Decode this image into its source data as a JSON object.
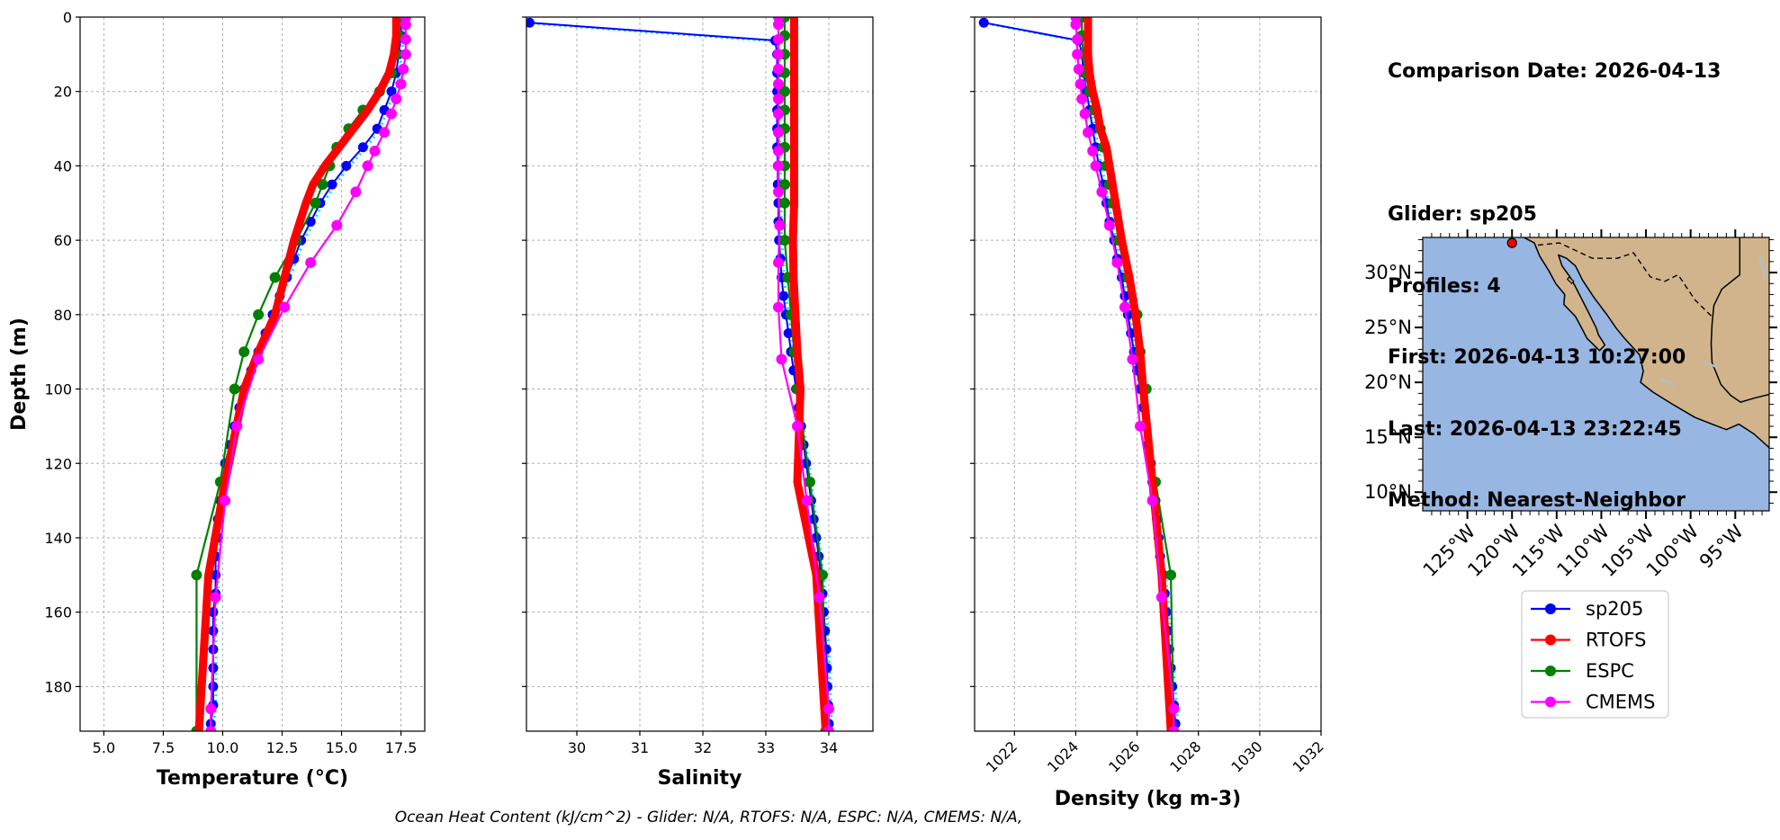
{
  "info": {
    "comparison_date": "Comparison Date: 2026-04-13",
    "glider": "Glider: sp205",
    "profiles": "Profiles: 4",
    "first": "First: 2026-04-13 10:27:00",
    "last": "Last: 2026-04-13 23:22:45",
    "method": "Method: Nearest-Neighbor"
  },
  "footer": "Ocean Heat Content (kJ/cm^2) - Glider: N/A,  RTOFS: N/A,  ESPC: N/A,  CMEMS: N/A,",
  "colors": {
    "glider": "#0000ff",
    "rtofs": "#ff0000",
    "espc": "#008000",
    "cmems": "#ff00ff",
    "glider_light": "#00e5ee",
    "land": "#d2b48c",
    "ocean": "#97b6e1"
  },
  "legend": [
    {
      "label": "sp205",
      "color": "#0000ff"
    },
    {
      "label": "RTOFS",
      "color": "#ff0000"
    },
    {
      "label": "ESPC",
      "color": "#008000"
    },
    {
      "label": "CMEMS",
      "color": "#ff00ff"
    }
  ],
  "map": {
    "lat_ticks": [
      "30°N",
      "25°N",
      "20°N",
      "15°N",
      "10°N"
    ],
    "lon_ticks": [
      "125°W",
      "120°W",
      "115°W",
      "110°W",
      "105°W",
      "100°W",
      "95°W"
    ],
    "glider_location": {
      "lon": -120.0,
      "lat": 32.7
    }
  },
  "chart_data": [
    {
      "type": "line",
      "xlabel": "Temperature (°C)",
      "ylabel": "Depth (m)",
      "xlim": [
        4,
        18.5
      ],
      "ylim": [
        192,
        0
      ],
      "xticks": [
        "5.0",
        "7.5",
        "10.0",
        "12.5",
        "15.0",
        "17.5"
      ],
      "yticks": [
        "0",
        "20",
        "40",
        "60",
        "80",
        "100",
        "120",
        "140",
        "160",
        "180"
      ],
      "grid": true,
      "series": [
        {
          "name": "RTOFS",
          "depth": [
            0,
            5,
            10,
            15,
            20,
            25,
            30,
            35,
            40,
            45,
            50,
            60,
            70,
            80,
            90,
            100,
            125,
            150,
            192
          ],
          "values": [
            17.3,
            17.3,
            17.2,
            17.0,
            16.6,
            16.1,
            15.5,
            14.9,
            14.3,
            13.8,
            13.5,
            13.0,
            12.6,
            12.2,
            11.5,
            10.9,
            10.1,
            9.4,
            9.0
          ]
        },
        {
          "name": "ESPC",
          "depth": [
            0,
            5,
            10,
            15,
            20,
            25,
            30,
            35,
            40,
            45,
            50,
            60,
            70,
            80,
            90,
            100,
            125,
            150,
            192
          ],
          "values": [
            17.5,
            17.4,
            17.3,
            17.1,
            16.6,
            15.9,
            15.3,
            14.8,
            14.5,
            14.2,
            13.9,
            13.1,
            12.2,
            11.5,
            10.9,
            10.5,
            9.9,
            8.9,
            8.9
          ]
        },
        {
          "name": "CMEMS",
          "depth": [
            0,
            2,
            6,
            10,
            14,
            18,
            22,
            26,
            31,
            36,
            40,
            47,
            56,
            66,
            78,
            92,
            110,
            130,
            156,
            186,
            192
          ],
          "values": [
            17.7,
            17.7,
            17.7,
            17.7,
            17.6,
            17.5,
            17.3,
            17.1,
            16.8,
            16.4,
            16.1,
            15.6,
            14.8,
            13.7,
            12.6,
            11.5,
            10.6,
            10.1,
            9.7,
            9.5,
            9.5
          ]
        },
        {
          "name": "sp205",
          "depth": [
            0,
            5,
            10,
            15,
            20,
            25,
            30,
            35,
            40,
            45,
            50,
            55,
            60,
            65,
            70,
            75,
            80,
            85,
            90,
            95,
            100,
            105,
            110,
            115,
            120,
            125,
            130,
            135,
            140,
            145,
            150,
            155,
            160,
            165,
            170,
            175,
            180,
            185,
            190
          ],
          "values": [
            17.5,
            17.5,
            17.4,
            17.3,
            17.1,
            16.8,
            16.5,
            15.9,
            15.2,
            14.6,
            14.1,
            13.7,
            13.3,
            13.0,
            12.7,
            12.4,
            12.1,
            11.8,
            11.5,
            11.2,
            10.9,
            10.7,
            10.5,
            10.3,
            10.1,
            10.0,
            9.9,
            9.8,
            9.8,
            9.7,
            9.7,
            9.7,
            9.6,
            9.6,
            9.6,
            9.6,
            9.6,
            9.6,
            9.5
          ]
        }
      ]
    },
    {
      "type": "line",
      "xlabel": "Salinity",
      "xlim": [
        29.2,
        34.7
      ],
      "ylim": [
        192,
        0
      ],
      "xticks": [
        "30",
        "31",
        "32",
        "33",
        "34"
      ],
      "grid": true,
      "series": [
        {
          "name": "RTOFS",
          "depth": [
            0,
            5,
            10,
            15,
            20,
            25,
            30,
            35,
            40,
            45,
            50,
            60,
            70,
            80,
            90,
            100,
            125,
            150,
            192
          ],
          "values": [
            33.45,
            33.45,
            33.45,
            33.45,
            33.45,
            33.45,
            33.45,
            33.45,
            33.45,
            33.45,
            33.45,
            33.43,
            33.44,
            33.47,
            33.5,
            33.55,
            33.5,
            33.8,
            33.95
          ]
        },
        {
          "name": "ESPC",
          "depth": [
            0,
            5,
            10,
            15,
            20,
            25,
            30,
            35,
            40,
            45,
            50,
            60,
            70,
            80,
            90,
            100,
            125,
            150,
            192
          ],
          "values": [
            33.3,
            33.3,
            33.3,
            33.3,
            33.3,
            33.3,
            33.3,
            33.3,
            33.3,
            33.3,
            33.3,
            33.3,
            33.35,
            33.4,
            33.45,
            33.5,
            33.7,
            33.9,
            33.95
          ]
        },
        {
          "name": "CMEMS",
          "depth": [
            0,
            2,
            6,
            10,
            14,
            18,
            22,
            26,
            31,
            36,
            40,
            47,
            56,
            66,
            78,
            92,
            110,
            130,
            156,
            186,
            192
          ],
          "values": [
            33.2,
            33.2,
            33.2,
            33.2,
            33.2,
            33.2,
            33.2,
            33.2,
            33.2,
            33.2,
            33.2,
            33.2,
            33.22,
            33.2,
            33.2,
            33.25,
            33.5,
            33.65,
            33.85,
            34.0,
            34.0
          ]
        },
        {
          "name": "sp205",
          "depth": [
            1.5,
            6.3,
            10,
            15,
            20,
            25,
            30,
            35,
            40,
            45,
            50,
            55,
            60,
            65,
            70,
            75,
            80,
            85,
            90,
            95,
            100,
            105,
            110,
            115,
            120,
            125,
            130,
            135,
            140,
            145,
            150,
            155,
            160,
            165,
            170,
            175,
            180,
            185,
            190
          ],
          "values": [
            29.25,
            33.15,
            33.18,
            33.18,
            33.18,
            33.18,
            33.18,
            33.18,
            33.19,
            33.19,
            33.2,
            33.2,
            33.21,
            33.23,
            33.25,
            33.28,
            33.32,
            33.36,
            33.4,
            33.44,
            33.48,
            33.52,
            33.56,
            33.6,
            33.64,
            33.68,
            33.72,
            33.76,
            33.8,
            33.84,
            33.87,
            33.9,
            33.92,
            33.94,
            33.96,
            33.97,
            33.98,
            33.99,
            34.0
          ]
        }
      ]
    },
    {
      "type": "line",
      "xlabel": "Density (kg m-3)",
      "xlim": [
        1020.7,
        1032
      ],
      "ylim": [
        192,
        0
      ],
      "xticks": [
        "1022",
        "1024",
        "1026",
        "1028",
        "1030",
        "1032"
      ],
      "grid": true,
      "series": [
        {
          "name": "RTOFS",
          "depth": [
            0,
            5,
            10,
            15,
            20,
            25,
            30,
            35,
            40,
            45,
            50,
            60,
            70,
            80,
            90,
            100,
            125,
            150,
            192
          ],
          "values": [
            1024.4,
            1024.4,
            1024.4,
            1024.45,
            1024.55,
            1024.7,
            1024.8,
            1025.0,
            1025.1,
            1025.2,
            1025.3,
            1025.5,
            1025.75,
            1025.95,
            1026.1,
            1026.2,
            1026.5,
            1026.8,
            1027.1
          ]
        },
        {
          "name": "ESPC",
          "depth": [
            0,
            5,
            10,
            15,
            20,
            25,
            30,
            35,
            40,
            45,
            50,
            60,
            70,
            80,
            90,
            100,
            125,
            150,
            192
          ],
          "values": [
            1024.2,
            1024.2,
            1024.25,
            1024.3,
            1024.45,
            1024.6,
            1024.8,
            1024.9,
            1025.0,
            1025.1,
            1025.2,
            1025.4,
            1025.7,
            1026.0,
            1026.1,
            1026.3,
            1026.6,
            1027.1,
            1027.2
          ]
        },
        {
          "name": "CMEMS",
          "depth": [
            0,
            2,
            6,
            10,
            14,
            18,
            22,
            26,
            31,
            36,
            40,
            47,
            56,
            66,
            78,
            92,
            110,
            130,
            156,
            186,
            192
          ],
          "values": [
            1024.0,
            1024.0,
            1024.05,
            1024.05,
            1024.1,
            1024.15,
            1024.2,
            1024.3,
            1024.4,
            1024.55,
            1024.65,
            1024.85,
            1025.1,
            1025.35,
            1025.6,
            1025.85,
            1026.1,
            1026.5,
            1026.8,
            1027.2,
            1027.2
          ]
        },
        {
          "name": "sp205",
          "depth": [
            1.5,
            6.3,
            10,
            15,
            20,
            25,
            30,
            35,
            40,
            45,
            50,
            55,
            60,
            65,
            70,
            75,
            80,
            85,
            90,
            95,
            100,
            105,
            110,
            115,
            120,
            125,
            130,
            135,
            140,
            145,
            150,
            155,
            160,
            165,
            170,
            175,
            180,
            185,
            190
          ],
          "values": [
            1021.0,
            1024.1,
            1024.2,
            1024.25,
            1024.35,
            1024.45,
            1024.55,
            1024.65,
            1024.75,
            1024.9,
            1025.0,
            1025.1,
            1025.25,
            1025.35,
            1025.5,
            1025.6,
            1025.7,
            1025.8,
            1025.9,
            1026.0,
            1026.1,
            1026.2,
            1026.25,
            1026.35,
            1026.45,
            1026.5,
            1026.6,
            1026.65,
            1026.7,
            1026.75,
            1026.85,
            1026.9,
            1026.95,
            1027.0,
            1027.05,
            1027.1,
            1027.15,
            1027.2,
            1027.25
          ]
        }
      ]
    }
  ]
}
